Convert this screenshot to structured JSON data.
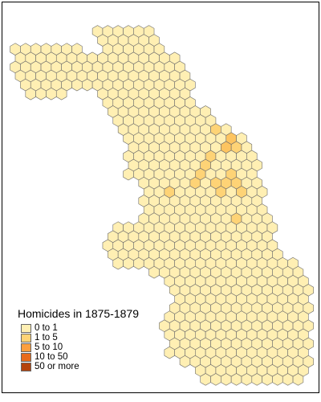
{
  "legend": {
    "title": "Homicides in 1875-1879",
    "items": [
      {
        "label": "0 to 1",
        "color": "#ffefb3"
      },
      {
        "label": "1 to 5",
        "color": "#fed376"
      },
      {
        "label": "5 to 10",
        "color": "#fd9f3e"
      },
      {
        "label": "10 to 50",
        "color": "#e86b1b"
      },
      {
        "label": "50 or more",
        "color": "#b5430c"
      }
    ]
  },
  "hex_outline_color": "#6b6b6b",
  "hotspot_colors": [
    "#fed376",
    "#fdc460",
    "#fba645"
  ]
}
